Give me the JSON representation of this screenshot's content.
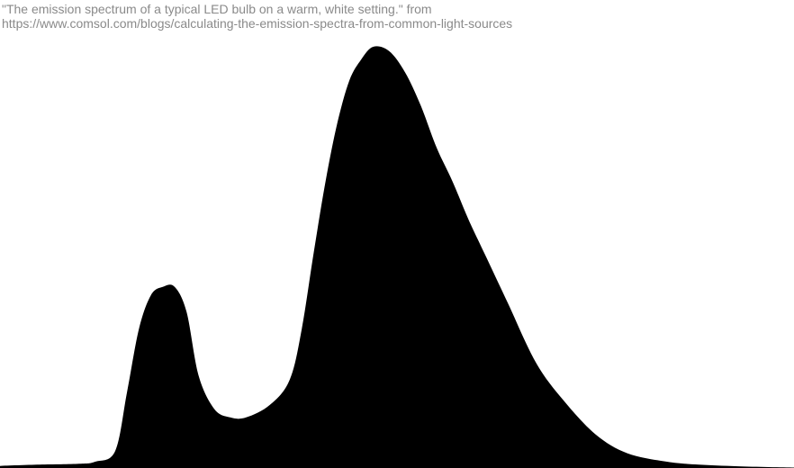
{
  "caption": {
    "line1": "\"The emission spectrum of a typical LED bulb on a warm, white setting.\" from",
    "line2": "https://www.comsol.com/blogs/calculating-the-emission-spectra-from-common-light-sources"
  },
  "colors": {
    "fill": "#000000",
    "caption": "#8a8a8a"
  },
  "chart_data": {
    "type": "area",
    "title": "",
    "xlabel": "",
    "ylabel": "",
    "grid": false,
    "xlim": [
      0,
      100
    ],
    "ylim": [
      0,
      100
    ],
    "x": [
      0,
      5,
      10,
      12,
      14.5,
      16,
      17.5,
      19,
      20.5,
      22,
      23.5,
      25,
      27,
      29,
      31,
      34,
      36.5,
      38,
      39.5,
      41,
      42.5,
      44,
      45.5,
      47,
      49,
      51,
      53,
      55,
      57,
      59,
      61,
      64,
      67.5,
      71,
      75,
      79,
      84,
      88,
      93,
      100
    ],
    "y": [
      0.5,
      0.8,
      1.0,
      1.5,
      4,
      18,
      33,
      41,
      43,
      43,
      37,
      22,
      14,
      12,
      12,
      15,
      21,
      33,
      51,
      68,
      82,
      92,
      97,
      100,
      99,
      94,
      86,
      76,
      68,
      59,
      51,
      39,
      25,
      16,
      8,
      3.5,
      1.5,
      0.8,
      0.4,
      0.1
    ]
  }
}
